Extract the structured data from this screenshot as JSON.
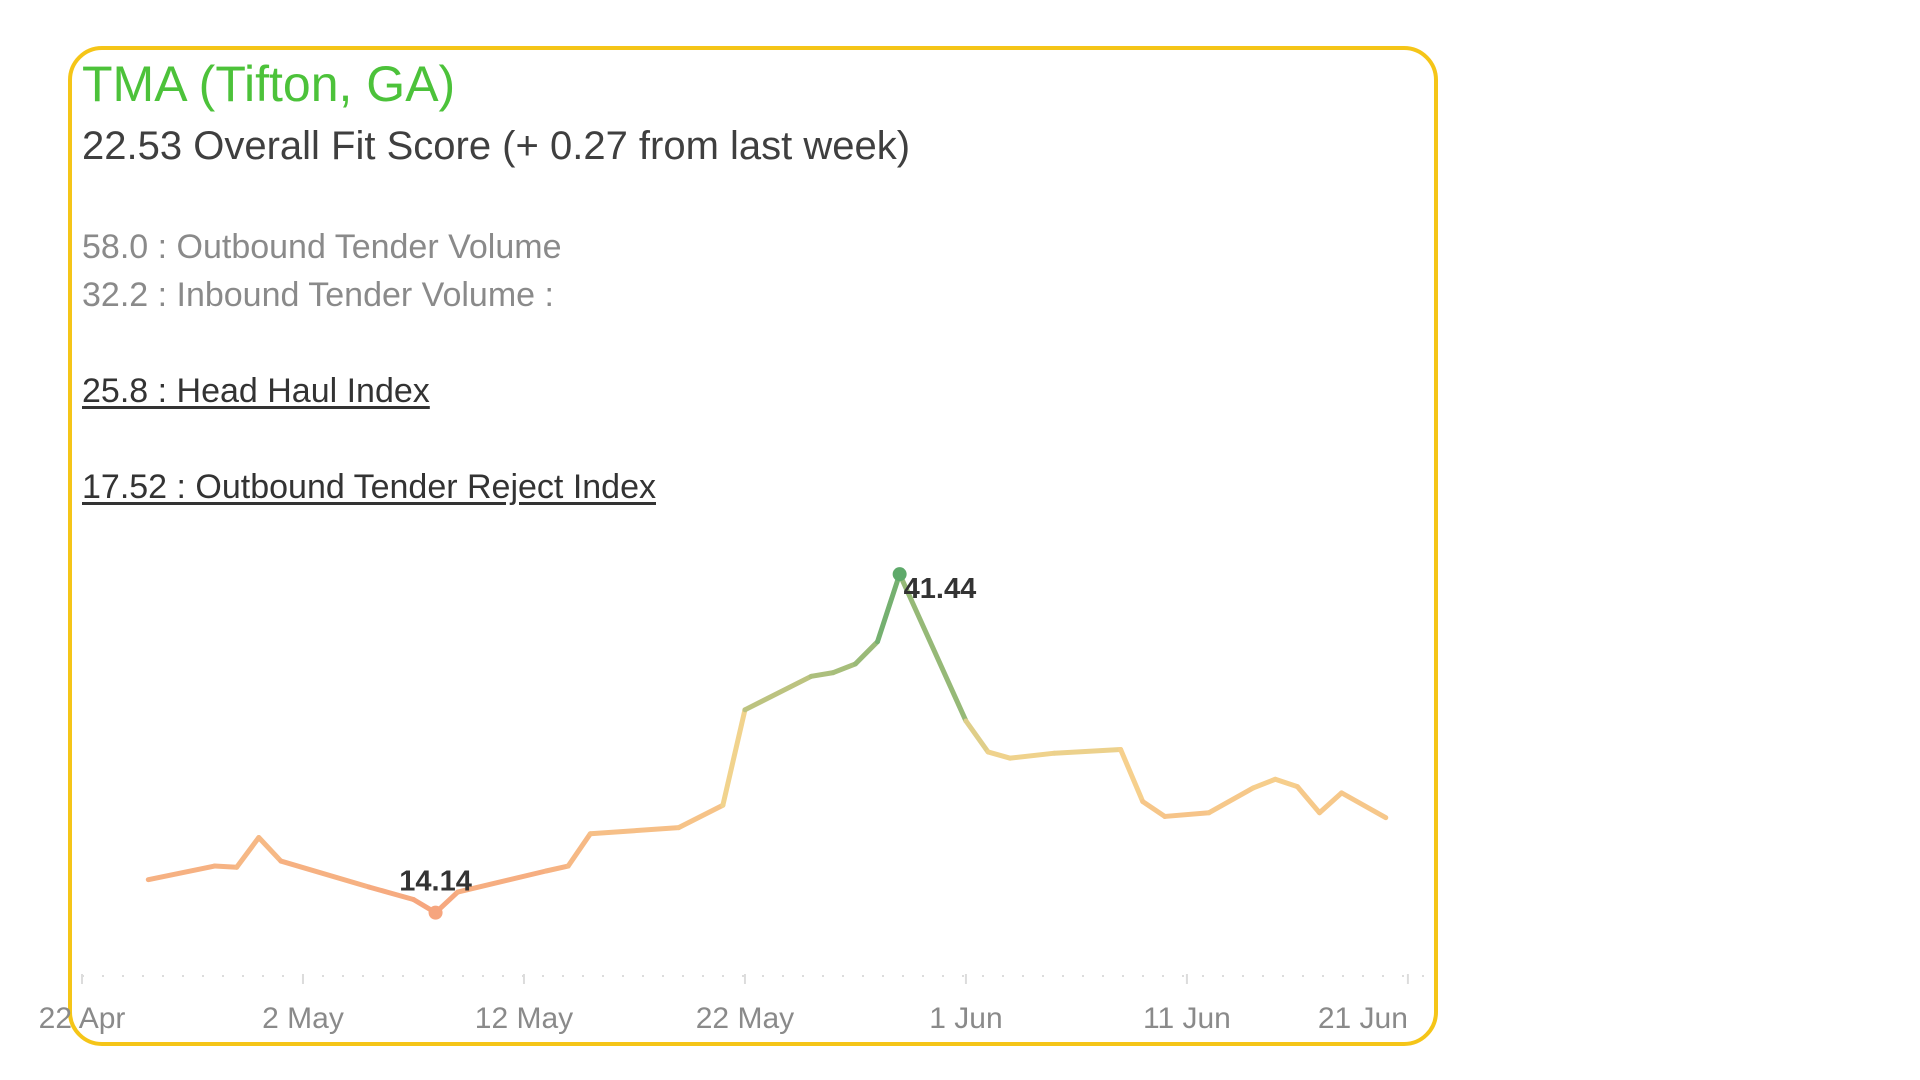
{
  "header": {
    "title": "TMA (Tifton, GA)",
    "subtitle": "22.53 Overall Fit Score (+ 0.27 from last week)"
  },
  "metrics": [
    {
      "value": "58.0",
      "label": "Outbound Tender Volume",
      "text": "58.0 : Outbound Tender Volume"
    },
    {
      "value": "32.2",
      "label": "Inbound Tender Volume :",
      "text": "32.2 : Inbound Tender Volume :"
    },
    {
      "value": "25.8",
      "label": "Head Haul Index",
      "text": "25.8 : Head Haul Index"
    },
    {
      "value": "17.52",
      "label": "Outbound Tender Reject Index",
      "text": "17.52 : Outbound Tender Reject Index"
    }
  ],
  "colors": {
    "border": "#f5c518",
    "title": "#4cc23a",
    "low": "#f6a47e",
    "mid": "#f6d48e",
    "high": "#5ea96a"
  },
  "chart_data": {
    "type": "line",
    "title": "",
    "xlabel": "",
    "ylabel": "",
    "x_ticks": [
      "22 Apr",
      "2 May",
      "12 May",
      "22 May",
      "1 Jun",
      "11 Jun",
      "21 Jun"
    ],
    "xlim": [
      "2024-04-22",
      "2024-06-22"
    ],
    "ylim": [
      10,
      45
    ],
    "grid": false,
    "x": [
      "2024-04-25",
      "2024-04-28",
      "2024-04-29",
      "2024-04-30",
      "2024-05-01",
      "2024-05-05",
      "2024-05-07",
      "2024-05-08",
      "2024-05-09",
      "2024-05-13",
      "2024-05-14",
      "2024-05-15",
      "2024-05-19",
      "2024-05-21",
      "2024-05-22",
      "2024-05-25",
      "2024-05-26",
      "2024-05-27",
      "2024-05-28",
      "2024-05-29",
      "2024-06-01",
      "2024-06-02",
      "2024-06-03",
      "2024-06-05",
      "2024-06-08",
      "2024-06-09",
      "2024-06-10",
      "2024-06-12",
      "2024-06-14",
      "2024-06-15",
      "2024-06-16",
      "2024-06-17",
      "2024-06-18",
      "2024-06-20"
    ],
    "y": [
      16.8,
      17.9,
      17.8,
      20.2,
      18.3,
      16.2,
      15.2,
      14.14,
      15.8,
      17.5,
      17.9,
      20.5,
      21.0,
      22.8,
      30.5,
      33.2,
      33.5,
      34.2,
      36.0,
      41.44,
      29.6,
      27.1,
      26.6,
      27.0,
      27.3,
      23.1,
      21.9,
      22.2,
      24.2,
      24.9,
      24.3,
      22.2,
      23.8,
      21.8
    ],
    "value_labels": [
      {
        "x": "2024-05-08",
        "y": 14.14,
        "text": "14.14"
      },
      {
        "x": "2024-05-29",
        "y": 41.44,
        "text": "41.44"
      }
    ]
  }
}
